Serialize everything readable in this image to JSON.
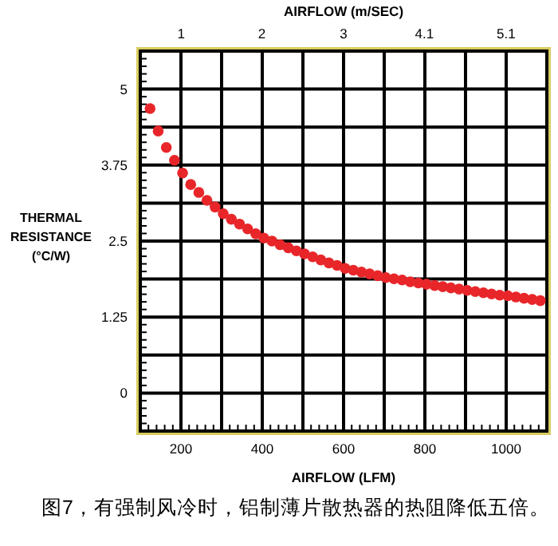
{
  "chart_data": {
    "type": "scatter",
    "xlabel": "AIRFLOW (LFM)",
    "x2label": "AIRFLOW (m/SEC)",
    "ylabel": "THERMAL RESISTANCE (°C/W)",
    "annotations": [
      "图7，有强制风冷时，铝制薄片散热器的热阻降低五倍。"
    ],
    "xlim": [
      100,
      1100
    ],
    "ylim": [
      -0.625,
      5.625
    ],
    "xticks": [
      {
        "value": 100,
        "label": null
      },
      200,
      {
        "value": 300,
        "label": null
      },
      400,
      {
        "value": 500,
        "label": null
      },
      600,
      {
        "value": 700,
        "label": null
      },
      800,
      {
        "value": 900,
        "label": null
      },
      1000,
      {
        "value": 1100,
        "label": null
      }
    ],
    "yticks": [
      {
        "value": -0.625,
        "label": null
      },
      0,
      {
        "value": 0.625,
        "label": null
      },
      1.25,
      {
        "value": 1.875,
        "label": null
      },
      2.5,
      {
        "value": 3.125,
        "label": null
      },
      3.75,
      {
        "value": 4.375,
        "label": null
      },
      5,
      {
        "value": 5.625,
        "label": null
      }
    ],
    "x2lim": [
      0.51,
      5.59
    ],
    "x2ticks": [
      {
        "value": 1.02,
        "label": "1"
      },
      {
        "value": 2.03,
        "label": "2"
      },
      {
        "value": 3.05,
        "label": "3"
      },
      {
        "value": 4.06,
        "label": "4.1"
      },
      {
        "value": 5.08,
        "label": "5.1"
      }
    ],
    "grid": true,
    "marker": "circle",
    "series": [
      {
        "color": "#e8262a",
        "x": [
          124,
          144,
          164,
          184,
          204,
          224,
          244,
          264,
          284,
          304,
          324,
          344,
          364,
          384,
          404,
          424,
          444,
          464,
          484,
          504,
          524,
          544,
          564,
          584,
          604,
          624,
          644,
          664,
          684,
          704,
          724,
          744,
          764,
          784,
          804,
          824,
          844,
          864,
          884,
          904,
          924,
          944,
          964,
          984,
          1004,
          1024,
          1044,
          1064,
          1084
        ],
        "values": [
          4.68,
          4.31,
          4.04,
          3.83,
          3.62,
          3.43,
          3.3,
          3.17,
          3.06,
          2.95,
          2.86,
          2.78,
          2.7,
          2.62,
          2.55,
          2.5,
          2.44,
          2.39,
          2.34,
          2.29,
          2.24,
          2.19,
          2.14,
          2.1,
          2.05,
          2.02,
          1.99,
          1.96,
          1.93,
          1.9,
          1.88,
          1.86,
          1.83,
          1.81,
          1.79,
          1.77,
          1.75,
          1.73,
          1.71,
          1.69,
          1.67,
          1.65,
          1.63,
          1.61,
          1.6,
          1.58,
          1.56,
          1.54,
          1.52
        ]
      }
    ]
  }
}
